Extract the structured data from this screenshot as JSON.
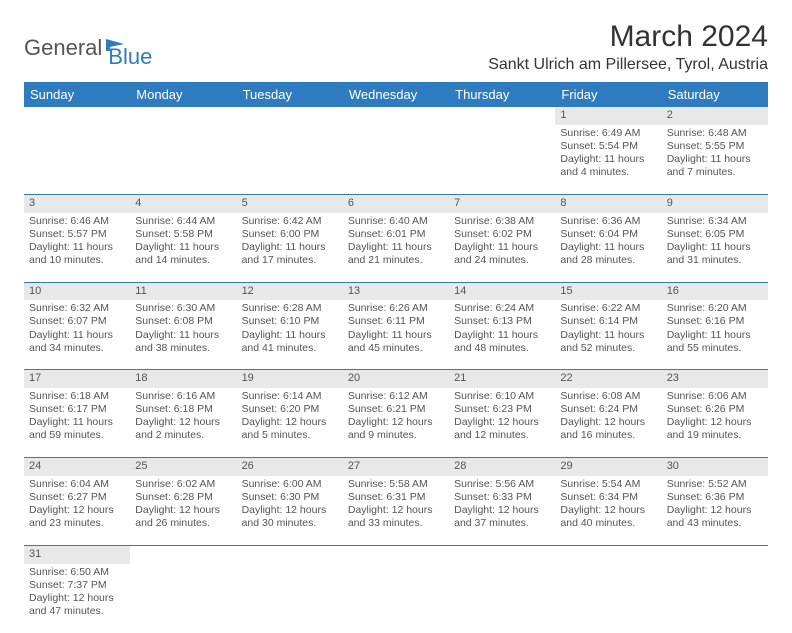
{
  "logo": {
    "text1": "General",
    "text2": "Blue"
  },
  "title": "March 2024",
  "location": "Sankt Ulrich am Pillersee, Tyrol, Austria",
  "colors": {
    "header_bg": "#2e7bc0",
    "header_fg": "#ffffff",
    "daynum_bg": "#e8e8e8",
    "border": "#2e7bc0"
  },
  "weekdays": [
    "Sunday",
    "Monday",
    "Tuesday",
    "Wednesday",
    "Thursday",
    "Friday",
    "Saturday"
  ],
  "weeks": [
    [
      null,
      null,
      null,
      null,
      null,
      {
        "n": "1",
        "sunrise": "Sunrise: 6:49 AM",
        "sunset": "Sunset: 5:54 PM",
        "daylight": "Daylight: 11 hours and 4 minutes."
      },
      {
        "n": "2",
        "sunrise": "Sunrise: 6:48 AM",
        "sunset": "Sunset: 5:55 PM",
        "daylight": "Daylight: 11 hours and 7 minutes."
      }
    ],
    [
      {
        "n": "3",
        "sunrise": "Sunrise: 6:46 AM",
        "sunset": "Sunset: 5:57 PM",
        "daylight": "Daylight: 11 hours and 10 minutes."
      },
      {
        "n": "4",
        "sunrise": "Sunrise: 6:44 AM",
        "sunset": "Sunset: 5:58 PM",
        "daylight": "Daylight: 11 hours and 14 minutes."
      },
      {
        "n": "5",
        "sunrise": "Sunrise: 6:42 AM",
        "sunset": "Sunset: 6:00 PM",
        "daylight": "Daylight: 11 hours and 17 minutes."
      },
      {
        "n": "6",
        "sunrise": "Sunrise: 6:40 AM",
        "sunset": "Sunset: 6:01 PM",
        "daylight": "Daylight: 11 hours and 21 minutes."
      },
      {
        "n": "7",
        "sunrise": "Sunrise: 6:38 AM",
        "sunset": "Sunset: 6:02 PM",
        "daylight": "Daylight: 11 hours and 24 minutes."
      },
      {
        "n": "8",
        "sunrise": "Sunrise: 6:36 AM",
        "sunset": "Sunset: 6:04 PM",
        "daylight": "Daylight: 11 hours and 28 minutes."
      },
      {
        "n": "9",
        "sunrise": "Sunrise: 6:34 AM",
        "sunset": "Sunset: 6:05 PM",
        "daylight": "Daylight: 11 hours and 31 minutes."
      }
    ],
    [
      {
        "n": "10",
        "sunrise": "Sunrise: 6:32 AM",
        "sunset": "Sunset: 6:07 PM",
        "daylight": "Daylight: 11 hours and 34 minutes."
      },
      {
        "n": "11",
        "sunrise": "Sunrise: 6:30 AM",
        "sunset": "Sunset: 6:08 PM",
        "daylight": "Daylight: 11 hours and 38 minutes."
      },
      {
        "n": "12",
        "sunrise": "Sunrise: 6:28 AM",
        "sunset": "Sunset: 6:10 PM",
        "daylight": "Daylight: 11 hours and 41 minutes."
      },
      {
        "n": "13",
        "sunrise": "Sunrise: 6:26 AM",
        "sunset": "Sunset: 6:11 PM",
        "daylight": "Daylight: 11 hours and 45 minutes."
      },
      {
        "n": "14",
        "sunrise": "Sunrise: 6:24 AM",
        "sunset": "Sunset: 6:13 PM",
        "daylight": "Daylight: 11 hours and 48 minutes."
      },
      {
        "n": "15",
        "sunrise": "Sunrise: 6:22 AM",
        "sunset": "Sunset: 6:14 PM",
        "daylight": "Daylight: 11 hours and 52 minutes."
      },
      {
        "n": "16",
        "sunrise": "Sunrise: 6:20 AM",
        "sunset": "Sunset: 6:16 PM",
        "daylight": "Daylight: 11 hours and 55 minutes."
      }
    ],
    [
      {
        "n": "17",
        "sunrise": "Sunrise: 6:18 AM",
        "sunset": "Sunset: 6:17 PM",
        "daylight": "Daylight: 11 hours and 59 minutes."
      },
      {
        "n": "18",
        "sunrise": "Sunrise: 6:16 AM",
        "sunset": "Sunset: 6:18 PM",
        "daylight": "Daylight: 12 hours and 2 minutes."
      },
      {
        "n": "19",
        "sunrise": "Sunrise: 6:14 AM",
        "sunset": "Sunset: 6:20 PM",
        "daylight": "Daylight: 12 hours and 5 minutes."
      },
      {
        "n": "20",
        "sunrise": "Sunrise: 6:12 AM",
        "sunset": "Sunset: 6:21 PM",
        "daylight": "Daylight: 12 hours and 9 minutes."
      },
      {
        "n": "21",
        "sunrise": "Sunrise: 6:10 AM",
        "sunset": "Sunset: 6:23 PM",
        "daylight": "Daylight: 12 hours and 12 minutes."
      },
      {
        "n": "22",
        "sunrise": "Sunrise: 6:08 AM",
        "sunset": "Sunset: 6:24 PM",
        "daylight": "Daylight: 12 hours and 16 minutes."
      },
      {
        "n": "23",
        "sunrise": "Sunrise: 6:06 AM",
        "sunset": "Sunset: 6:26 PM",
        "daylight": "Daylight: 12 hours and 19 minutes."
      }
    ],
    [
      {
        "n": "24",
        "sunrise": "Sunrise: 6:04 AM",
        "sunset": "Sunset: 6:27 PM",
        "daylight": "Daylight: 12 hours and 23 minutes."
      },
      {
        "n": "25",
        "sunrise": "Sunrise: 6:02 AM",
        "sunset": "Sunset: 6:28 PM",
        "daylight": "Daylight: 12 hours and 26 minutes."
      },
      {
        "n": "26",
        "sunrise": "Sunrise: 6:00 AM",
        "sunset": "Sunset: 6:30 PM",
        "daylight": "Daylight: 12 hours and 30 minutes."
      },
      {
        "n": "27",
        "sunrise": "Sunrise: 5:58 AM",
        "sunset": "Sunset: 6:31 PM",
        "daylight": "Daylight: 12 hours and 33 minutes."
      },
      {
        "n": "28",
        "sunrise": "Sunrise: 5:56 AM",
        "sunset": "Sunset: 6:33 PM",
        "daylight": "Daylight: 12 hours and 37 minutes."
      },
      {
        "n": "29",
        "sunrise": "Sunrise: 5:54 AM",
        "sunset": "Sunset: 6:34 PM",
        "daylight": "Daylight: 12 hours and 40 minutes."
      },
      {
        "n": "30",
        "sunrise": "Sunrise: 5:52 AM",
        "sunset": "Sunset: 6:36 PM",
        "daylight": "Daylight: 12 hours and 43 minutes."
      }
    ],
    [
      {
        "n": "31",
        "sunrise": "Sunrise: 6:50 AM",
        "sunset": "Sunset: 7:37 PM",
        "daylight": "Daylight: 12 hours and 47 minutes."
      },
      null,
      null,
      null,
      null,
      null,
      null
    ]
  ]
}
